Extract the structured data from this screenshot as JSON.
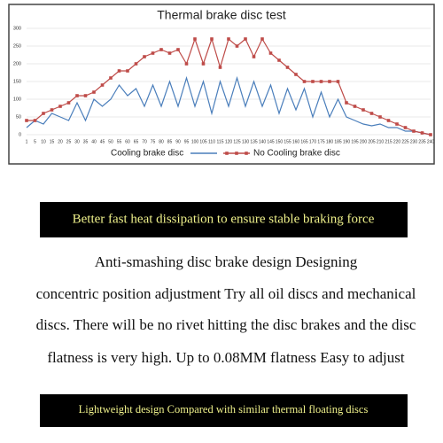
{
  "chart_data": {
    "type": "line",
    "title": "Thermal brake disc test",
    "categories": [
      "1",
      "5",
      "10",
      "15",
      "20",
      "25",
      "30",
      "35",
      "40",
      "45",
      "50",
      "55",
      "60",
      "65",
      "70",
      "75",
      "80",
      "85",
      "90",
      "95",
      "100",
      "105",
      "110",
      "115",
      "120",
      "125",
      "130",
      "135",
      "140",
      "145",
      "150",
      "155",
      "160",
      "165",
      "170",
      "175",
      "180",
      "185",
      "190",
      "195",
      "200",
      "205",
      "210",
      "215",
      "220",
      "225",
      "230",
      "235",
      "240"
    ],
    "series": [
      {
        "name": "Cooling brake disc",
        "color": "#4a7ebb",
        "marker": "none",
        "values": [
          20,
          40,
          30,
          60,
          50,
          40,
          90,
          40,
          100,
          80,
          100,
          140,
          110,
          130,
          80,
          140,
          80,
          150,
          80,
          160,
          80,
          150,
          60,
          150,
          80,
          160,
          80,
          150,
          80,
          140,
          60,
          130,
          70,
          130,
          50,
          120,
          50,
          100,
          50,
          40,
          30,
          25,
          30,
          20,
          20,
          10,
          10,
          5,
          0
        ]
      },
      {
        "name": "No Cooling brake disc",
        "color": "#be4b48",
        "marker": "square",
        "values": [
          40,
          40,
          60,
          70,
          80,
          90,
          110,
          110,
          120,
          140,
          160,
          180,
          180,
          200,
          220,
          230,
          240,
          230,
          240,
          200,
          270,
          200,
          270,
          190,
          270,
          250,
          270,
          220,
          270,
          230,
          210,
          190,
          170,
          150,
          150,
          150,
          150,
          150,
          90,
          80,
          70,
          60,
          50,
          40,
          30,
          20,
          10,
          5,
          0
        ]
      }
    ],
    "ylim": [
      0,
      300
    ],
    "yticks": [
      0,
      50,
      100,
      150,
      200,
      250,
      300
    ],
    "grid": true,
    "legend": "bottom"
  },
  "banner_top": "Better fast heat dissipation to ensure stable braking force",
  "paragraph": [
    "Anti-smashing disc brake design Designing",
    "concentric position adjustment Try all oil discs and mechanical",
    "discs. There will be no rivet hitting the disc brakes and the disc",
    "flatness is very high. Up to 0.08MM flatness Easy to adjust"
  ],
  "banner_bottom": "Lightweight design Compared with similar thermal floating discs"
}
